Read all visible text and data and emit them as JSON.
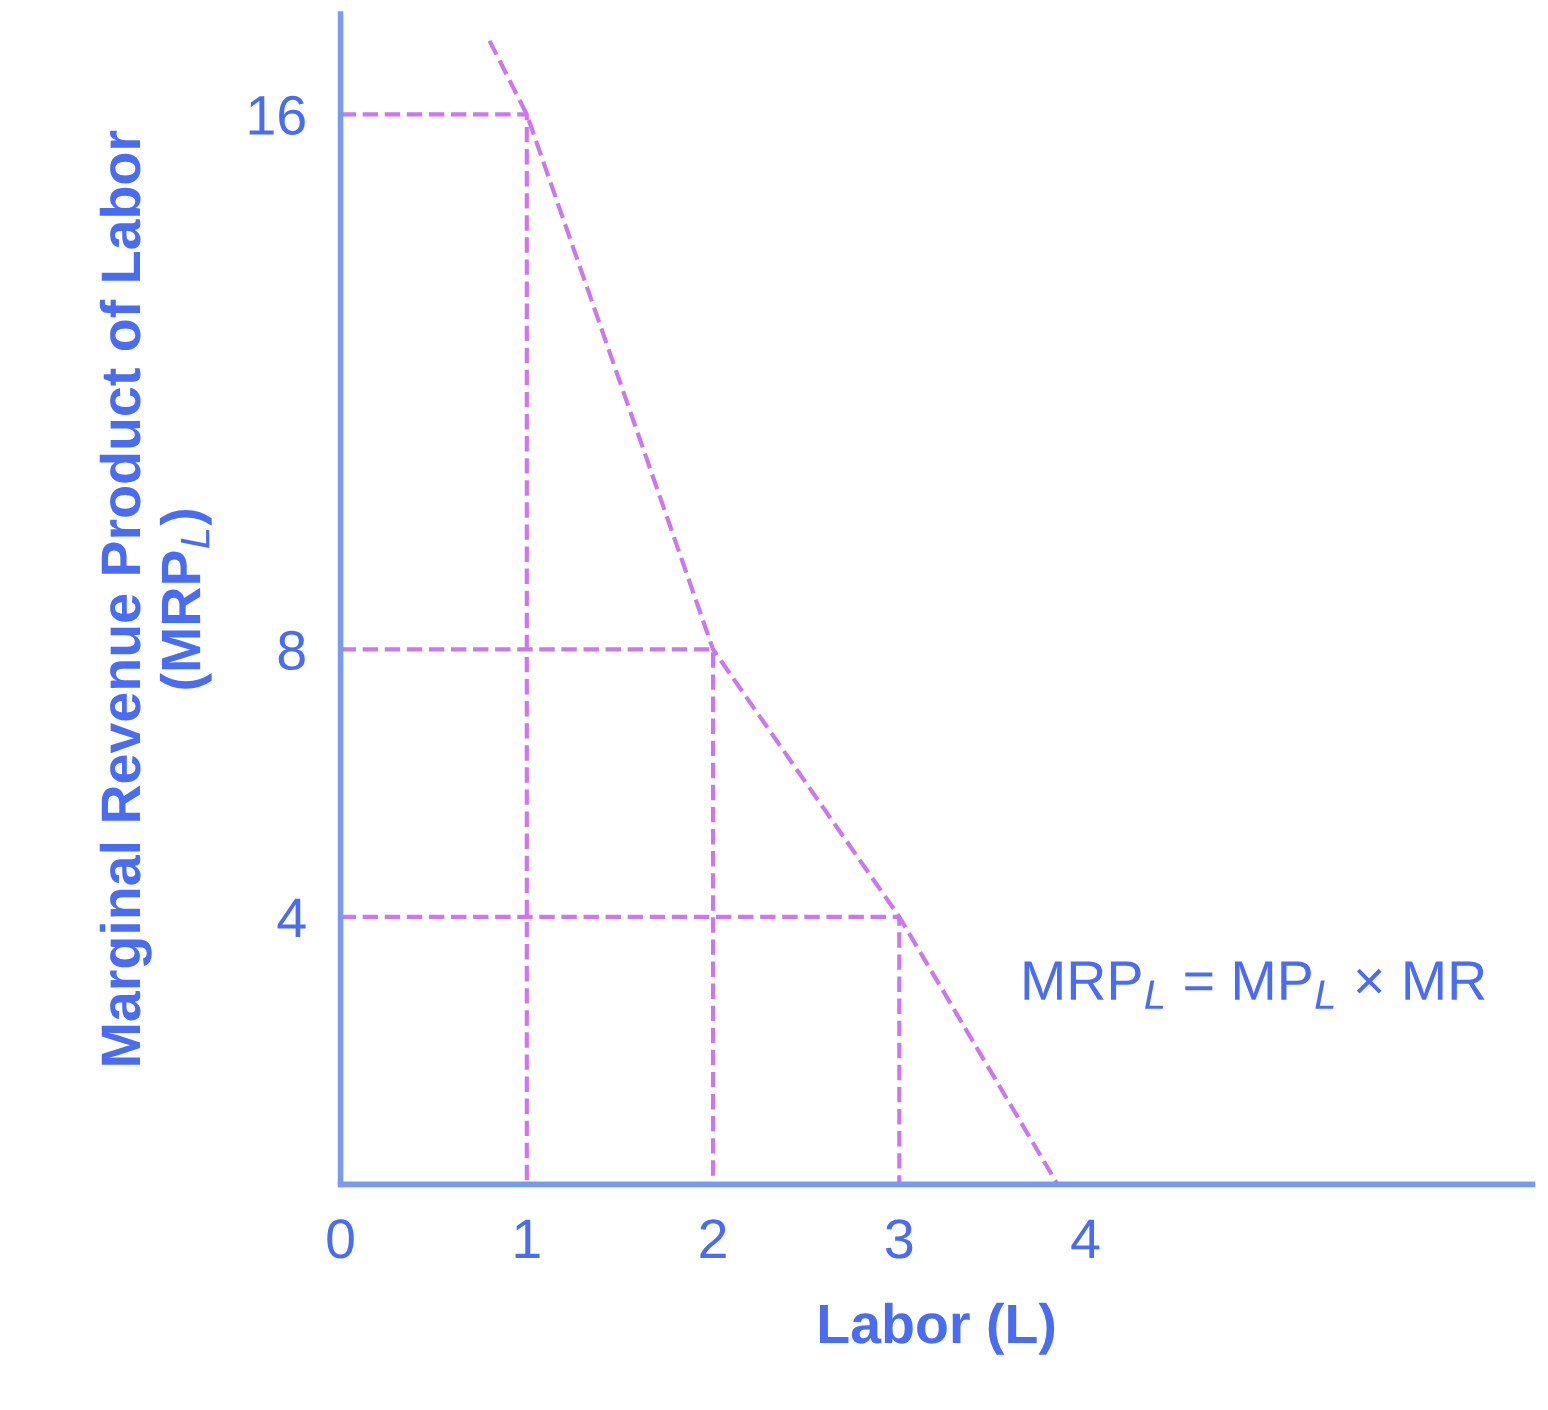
{
  "chart_data": {
    "type": "line",
    "xlabel": "Labor (L)",
    "ylabel": "Marginal Revenue Product of Labor\n(MRP$_{L}$)",
    "xlim": [
      0,
      6.4
    ],
    "ylim": [
      0,
      17.5
    ],
    "xticks": [
      0,
      1,
      2,
      3,
      4
    ],
    "yticks": [
      4,
      8,
      16
    ],
    "grid": false,
    "legend": false,
    "line_style": "dashed",
    "marker": "none",
    "series": [
      {
        "color": "#cc77ee",
        "x": [
          0.8,
          1,
          2,
          3,
          3.85
        ],
        "values": [
          17.1,
          16,
          8,
          4,
          0
        ]
      },
      {
        "color": "#cc77ee",
        "x": [
          0,
          1,
          1
        ],
        "values": [
          16,
          16,
          0
        ]
      },
      {
        "color": "#cc77ee",
        "x": [
          0,
          2,
          2
        ],
        "values": [
          8,
          8,
          0
        ]
      },
      {
        "color": "#cc77ee",
        "x": [
          0,
          3,
          3
        ],
        "values": [
          4,
          4,
          0
        ]
      }
    ],
    "annotations": [
      "MRP$_{L}$ = MP$_{L}$ × MR"
    ]
  }
}
